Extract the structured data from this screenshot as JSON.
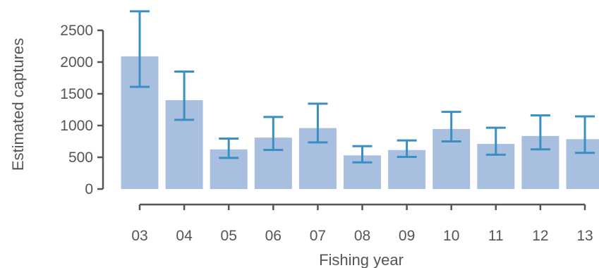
{
  "chart_data": {
    "type": "bar",
    "title": "",
    "xlabel": "Fishing year",
    "ylabel": "Estimated captures",
    "categories": [
      "03",
      "04",
      "05",
      "06",
      "07",
      "08",
      "09",
      "10",
      "11",
      "12",
      "13"
    ],
    "values": [
      2090,
      1400,
      625,
      810,
      960,
      530,
      615,
      945,
      710,
      835,
      785
    ],
    "error_low": [
      1610,
      1090,
      490,
      615,
      735,
      420,
      505,
      750,
      540,
      625,
      570
    ],
    "error_high": [
      2800,
      1850,
      795,
      1135,
      1345,
      675,
      765,
      1215,
      965,
      1160,
      1145
    ],
    "ylim": [
      0,
      2800
    ],
    "yticks": [
      0,
      500,
      1000,
      1500,
      2000,
      2500
    ],
    "grid": false,
    "bar_color": "#a9bfe0",
    "error_color": "#3a8fc2",
    "axis_color": "#555555"
  }
}
